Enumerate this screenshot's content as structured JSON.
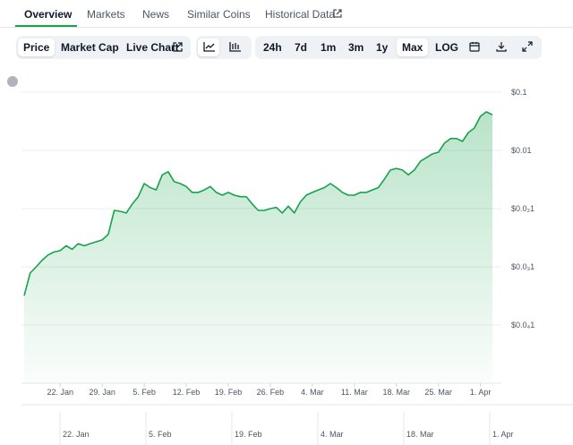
{
  "tabs": [
    "Overview",
    "Markets",
    "News",
    "Similar Coins",
    "Historical Data"
  ],
  "toolbar": {
    "views": [
      "Price",
      "Market Cap",
      "Live Chart"
    ],
    "ranges": [
      "24h",
      "7d",
      "1m",
      "3m",
      "1y",
      "Max"
    ],
    "log": "LOG"
  },
  "chart_data": {
    "type": "area",
    "log_scale": true,
    "grid": true,
    "color": "#16a34a",
    "categories": [
      null,
      null,
      null,
      null,
      null,
      null,
      "22. Jan",
      null,
      null,
      null,
      null,
      null,
      null,
      "29. Jan",
      null,
      null,
      null,
      null,
      null,
      null,
      "5. Feb",
      null,
      null,
      null,
      null,
      null,
      null,
      "12. Feb",
      null,
      null,
      null,
      null,
      null,
      null,
      "19. Feb",
      null,
      null,
      null,
      null,
      null,
      null,
      "26. Feb",
      null,
      null,
      null,
      null,
      null,
      null,
      "4. Mar",
      null,
      null,
      null,
      null,
      null,
      null,
      "11. Mar",
      null,
      null,
      null,
      null,
      null,
      null,
      "18. Mar",
      null,
      null,
      null,
      null,
      null,
      null,
      "25. Mar",
      null,
      null,
      null,
      null,
      null,
      null,
      "1. Apr",
      null,
      null
    ],
    "values": [
      3.2e-05,
      7.8e-05,
      0.0001,
      0.00013,
      0.00016,
      0.00018,
      0.00019,
      0.00023,
      0.0002,
      0.00025,
      0.00023,
      0.00025,
      0.00027,
      0.00029,
      0.00036,
      0.00093,
      0.0009,
      0.00084,
      0.0012,
      0.0016,
      0.0027,
      0.0023,
      0.0021,
      0.0038,
      0.0043,
      0.0029,
      0.0027,
      0.0024,
      0.0019,
      0.0019,
      0.0021,
      0.0024,
      0.0019,
      0.0017,
      0.0019,
      0.0017,
      0.0016,
      0.0016,
      0.0012,
      0.00093,
      0.00093,
      0.001,
      0.00105,
      0.00084,
      0.0011,
      0.00084,
      0.0013,
      0.0017,
      0.0019,
      0.0021,
      0.0023,
      0.0027,
      0.0023,
      0.0019,
      0.0017,
      0.0017,
      0.0019,
      0.0019,
      0.0021,
      0.0023,
      0.0032,
      0.0046,
      0.0049,
      0.0046,
      0.0038,
      0.0046,
      0.0065,
      0.0075,
      0.0087,
      0.0093,
      0.0133,
      0.016,
      0.016,
      0.0143,
      0.0203,
      0.0243,
      0.0385,
      0.046,
      0.041
    ],
    "ylim": [
      1e-06,
      0.1
    ],
    "yticks": [
      {
        "value": 0.1,
        "label": "$0.1"
      },
      {
        "value": 0.01,
        "label": "$0.01"
      },
      {
        "value": 0.001,
        "label": "$0.0₂1"
      },
      {
        "value": 0.0001,
        "label": "$0.0₃1"
      },
      {
        "value": 1e-05,
        "label": "$0.0₄1"
      }
    ]
  },
  "navigator": {
    "labels": [
      "22. Jan",
      "5. Feb",
      "19. Feb",
      "4. Mar",
      "18. Mar",
      "1. Apr"
    ]
  }
}
